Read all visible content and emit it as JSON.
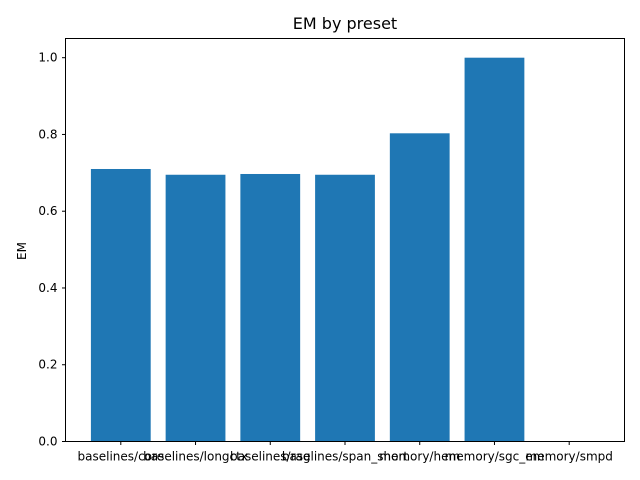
{
  "chart_data": {
    "type": "bar",
    "title": "EM by preset",
    "xlabel": "",
    "ylabel": "EM",
    "categories": [
      "baselines/core",
      "baselines/longctx",
      "baselines/rag",
      "baselines/span_short",
      "memory/hem",
      "memory/sgc_em",
      "memory/smpd"
    ],
    "values": [
      0.71,
      0.695,
      0.697,
      0.695,
      0.803,
      1.0,
      0.0
    ],
    "ylim": [
      0,
      1.05
    ],
    "yticks": [
      0.0,
      0.2,
      0.4,
      0.6,
      0.8,
      1.0
    ],
    "ytick_labels": [
      "0.0",
      "0.2",
      "0.4",
      "0.6",
      "0.8",
      "1.0"
    ],
    "bar_color": "#1f77b4",
    "grid": false,
    "legend": "none"
  }
}
